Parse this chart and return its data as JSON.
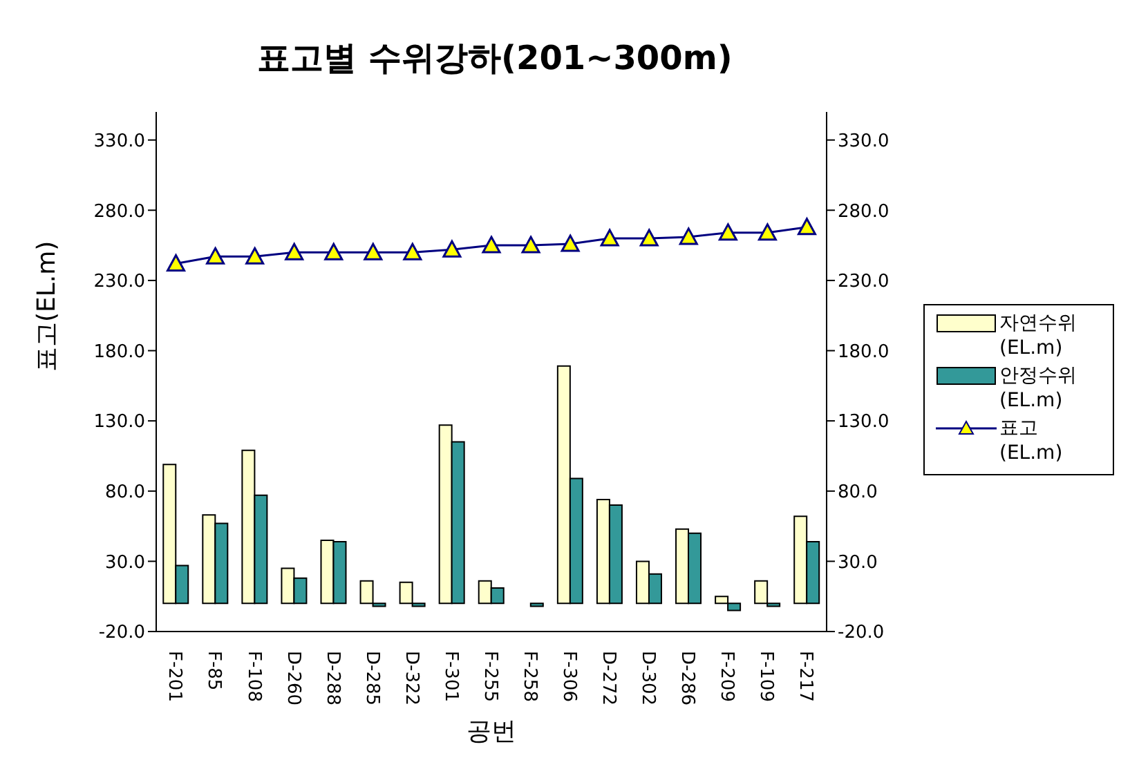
{
  "chart_data": {
    "type": "bar",
    "title": "표고별 수위강하(201~300m)",
    "xlabel": "공번",
    "ylabel": "표고(EL.m)",
    "categories": [
      "F-201",
      "F-85",
      "F-108",
      "D-260",
      "D-288",
      "D-285",
      "D-322",
      "F-301",
      "F-255",
      "F-258",
      "F-306",
      "D-272",
      "D-302",
      "D-286",
      "F-209",
      "F-109",
      "F-217"
    ],
    "series": [
      {
        "name": "자연수위\n(EL.m)",
        "color": "#ffffcc",
        "values": [
          99,
          63,
          109,
          25,
          45,
          16,
          15,
          127,
          16,
          0,
          169,
          74,
          30,
          53,
          5,
          16,
          62
        ]
      },
      {
        "name": "안정수위\n(EL.m)",
        "color": "#339999",
        "values": [
          27,
          57,
          77,
          18,
          44,
          -2,
          -2,
          115,
          11,
          -2,
          89,
          70,
          21,
          50,
          -5,
          -2,
          44
        ]
      },
      {
        "name": "표고\n(EL.m)",
        "type": "line",
        "color": "#000080",
        "marker": "triangle",
        "values": [
          242,
          247,
          247,
          250,
          250,
          250,
          250,
          252,
          255,
          255,
          256,
          260,
          260,
          261,
          264,
          264,
          268
        ]
      }
    ],
    "ylim": [
      -20,
      350
    ],
    "yticks": [
      {
        "value": -20,
        "label": "-20.0"
      },
      {
        "value": 30,
        "label": "30.0"
      },
      {
        "value": 80,
        "label": "80.0"
      },
      {
        "value": 130,
        "label": "130.0"
      },
      {
        "value": 180,
        "label": "180.0"
      },
      {
        "value": 230,
        "label": "230.0"
      },
      {
        "value": 280,
        "label": "280.0"
      },
      {
        "value": 330,
        "label": "330.0"
      }
    ],
    "y2lim": [
      -20,
      350
    ],
    "y2ticks": [
      {
        "value": -20,
        "label": "-20.0"
      },
      {
        "value": 30,
        "label": "30.0"
      },
      {
        "value": 80,
        "label": "80.0"
      },
      {
        "value": 130,
        "label": "130.0"
      },
      {
        "value": 180,
        "label": "180.0"
      },
      {
        "value": 230,
        "label": "230.0"
      },
      {
        "value": 280,
        "label": "280.0"
      },
      {
        "value": 330,
        "label": "330.0"
      }
    ],
    "grid": false,
    "legend": "right"
  }
}
